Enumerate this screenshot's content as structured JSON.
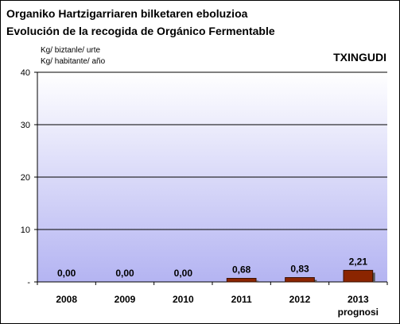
{
  "header": {
    "title_line1": "Organiko Hartzigarriaren bilketaren eboluzioa",
    "title_line2": "Evolución de la recogida de Orgánico Fermentable",
    "unit_line1": "Kg/ biztanle/ urte",
    "unit_line2": "Kg/ habitante/ año",
    "region": "TXINGUDI"
  },
  "colors": {
    "bar_fill": "#8B2500",
    "bar_stroke": "#3a1000",
    "bar_shadow": "#555555",
    "plot_top": "#ffffff",
    "plot_bottom": "#b4b4f2",
    "gridline": "#000000"
  },
  "chart_data": {
    "type": "bar",
    "title": "Organiko Hartzigarriaren bilketaren eboluzioa / Evolución de la recogida de Orgánico Fermentable",
    "xlabel": "",
    "ylabel": "Kg/ biztanle/ urte / Kg/ habitante/ año",
    "categories": [
      "2008",
      "2009",
      "2010",
      "2011",
      "2012",
      "2013"
    ],
    "category_sublabels": [
      "",
      "",
      "",
      "",
      "",
      "prognosi"
    ],
    "values": [
      0.0,
      0.0,
      0.0,
      0.68,
      0.83,
      2.21
    ],
    "data_labels": [
      "0,00",
      "0,00",
      "0,00",
      "0,68",
      "0,83",
      "2,21"
    ],
    "ylim": [
      0,
      40
    ],
    "yticks": [
      0,
      10,
      20,
      30,
      40
    ],
    "ytick_labels": [
      "-",
      "10",
      "20",
      "30",
      "40"
    ],
    "grid": true,
    "legend": "none"
  }
}
